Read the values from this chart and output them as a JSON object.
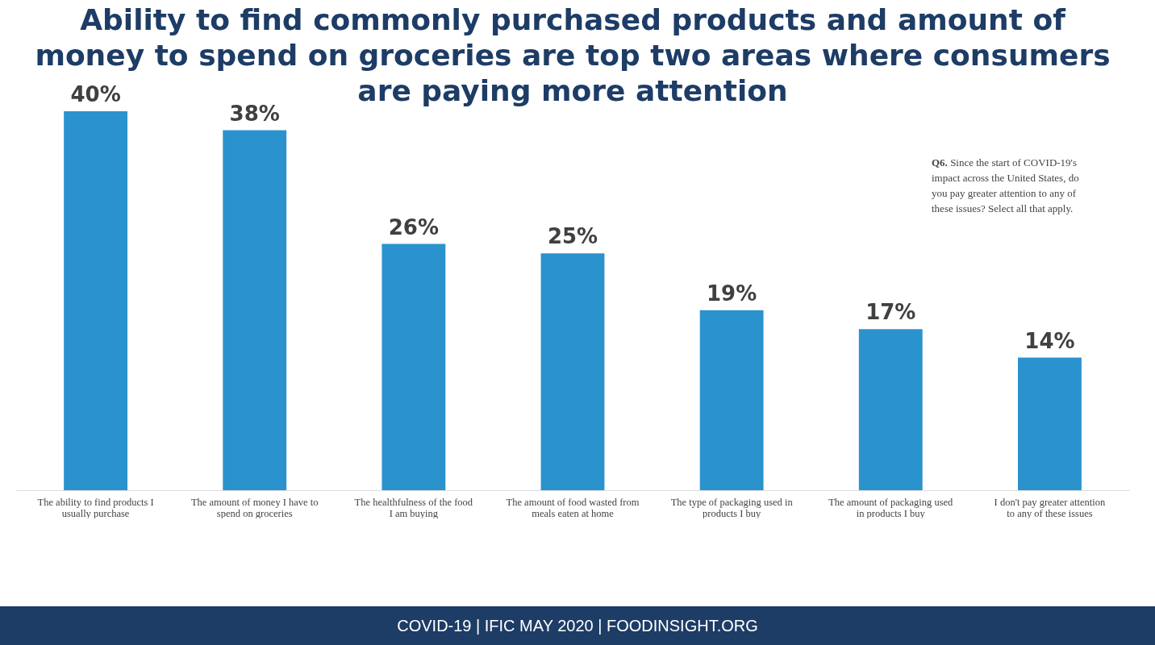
{
  "chart_data": {
    "type": "bar",
    "title": "Ability to find commonly purchased products and amount of money to spend on groceries are top two areas where consumers are paying more attention",
    "categories": [
      "The ability to find products I usually purchase",
      "The amount of money I have to spend on groceries",
      "The healthfulness of the food I am buying",
      "The amount of food wasted from meals eaten at home",
      "The type of packaging used in products I buy",
      "The amount of packaging used in products I buy",
      "I don't pay greater attention to any of these issues"
    ],
    "values": [
      40,
      38,
      26,
      25,
      19,
      17,
      14
    ],
    "value_labels": [
      "40%",
      "38%",
      "26%",
      "25%",
      "19%",
      "17%",
      "14%"
    ],
    "color": "#2a93cd",
    "annotations": [
      "Q6. Since the start of COVID-19's impact across the United States, do you pay greater attention to any of these issues? Select all that apply.",
      "COVID-19 | IFIC MAY 2020 | FOODINSIGHT.ORG"
    ]
  }
}
